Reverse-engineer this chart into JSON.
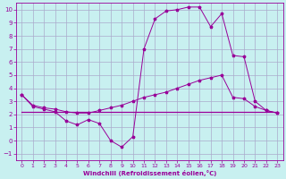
{
  "xlabel": "Windchill (Refroidissement éolien,°C)",
  "bg_color": "#c8f0f0",
  "line_color": "#990099",
  "grid_color": "#aaaacc",
  "xlim": [
    -0.5,
    23.5
  ],
  "ylim": [
    -1.5,
    10.5
  ],
  "xticks": [
    0,
    1,
    2,
    3,
    4,
    5,
    6,
    7,
    8,
    9,
    10,
    11,
    12,
    13,
    14,
    15,
    16,
    17,
    18,
    19,
    20,
    21,
    22,
    23
  ],
  "yticks": [
    -1,
    0,
    1,
    2,
    3,
    4,
    5,
    6,
    7,
    8,
    9,
    10
  ],
  "line1_x": [
    0,
    1,
    2,
    3,
    4,
    5,
    6,
    7,
    8,
    9,
    10,
    11,
    12,
    13,
    14,
    15,
    16,
    17,
    18,
    19,
    20,
    21,
    22,
    23
  ],
  "line1_y": [
    3.5,
    2.6,
    2.4,
    2.2,
    1.5,
    1.2,
    1.6,
    1.3,
    0.0,
    -0.5,
    0.3,
    7.0,
    9.3,
    9.9,
    10.0,
    10.2,
    10.2,
    8.7,
    9.7,
    6.5,
    6.4,
    3.0,
    2.3,
    2.1
  ],
  "line2_x": [
    0,
    1,
    2,
    3,
    4,
    5,
    6,
    7,
    8,
    9,
    10,
    11,
    12,
    13,
    14,
    15,
    16,
    17,
    18,
    19,
    20,
    21,
    22,
    23
  ],
  "line2_y": [
    3.5,
    2.7,
    2.5,
    2.4,
    2.2,
    2.1,
    2.1,
    2.3,
    2.5,
    2.7,
    3.0,
    3.3,
    3.5,
    3.7,
    4.0,
    4.3,
    4.6,
    4.8,
    5.0,
    3.3,
    3.2,
    2.6,
    2.3,
    2.1
  ],
  "line3_x": [
    0,
    1,
    2,
    3,
    4,
    5,
    6,
    7,
    8,
    9,
    10,
    11,
    12,
    13,
    14,
    15,
    16,
    17,
    18,
    19,
    20,
    21,
    22,
    23
  ],
  "line3_y": [
    2.2,
    2.2,
    2.2,
    2.2,
    2.2,
    2.2,
    2.2,
    2.2,
    2.2,
    2.2,
    2.2,
    2.2,
    2.2,
    2.2,
    2.2,
    2.2,
    2.2,
    2.2,
    2.2,
    2.2,
    2.2,
    2.2,
    2.2,
    2.2
  ]
}
